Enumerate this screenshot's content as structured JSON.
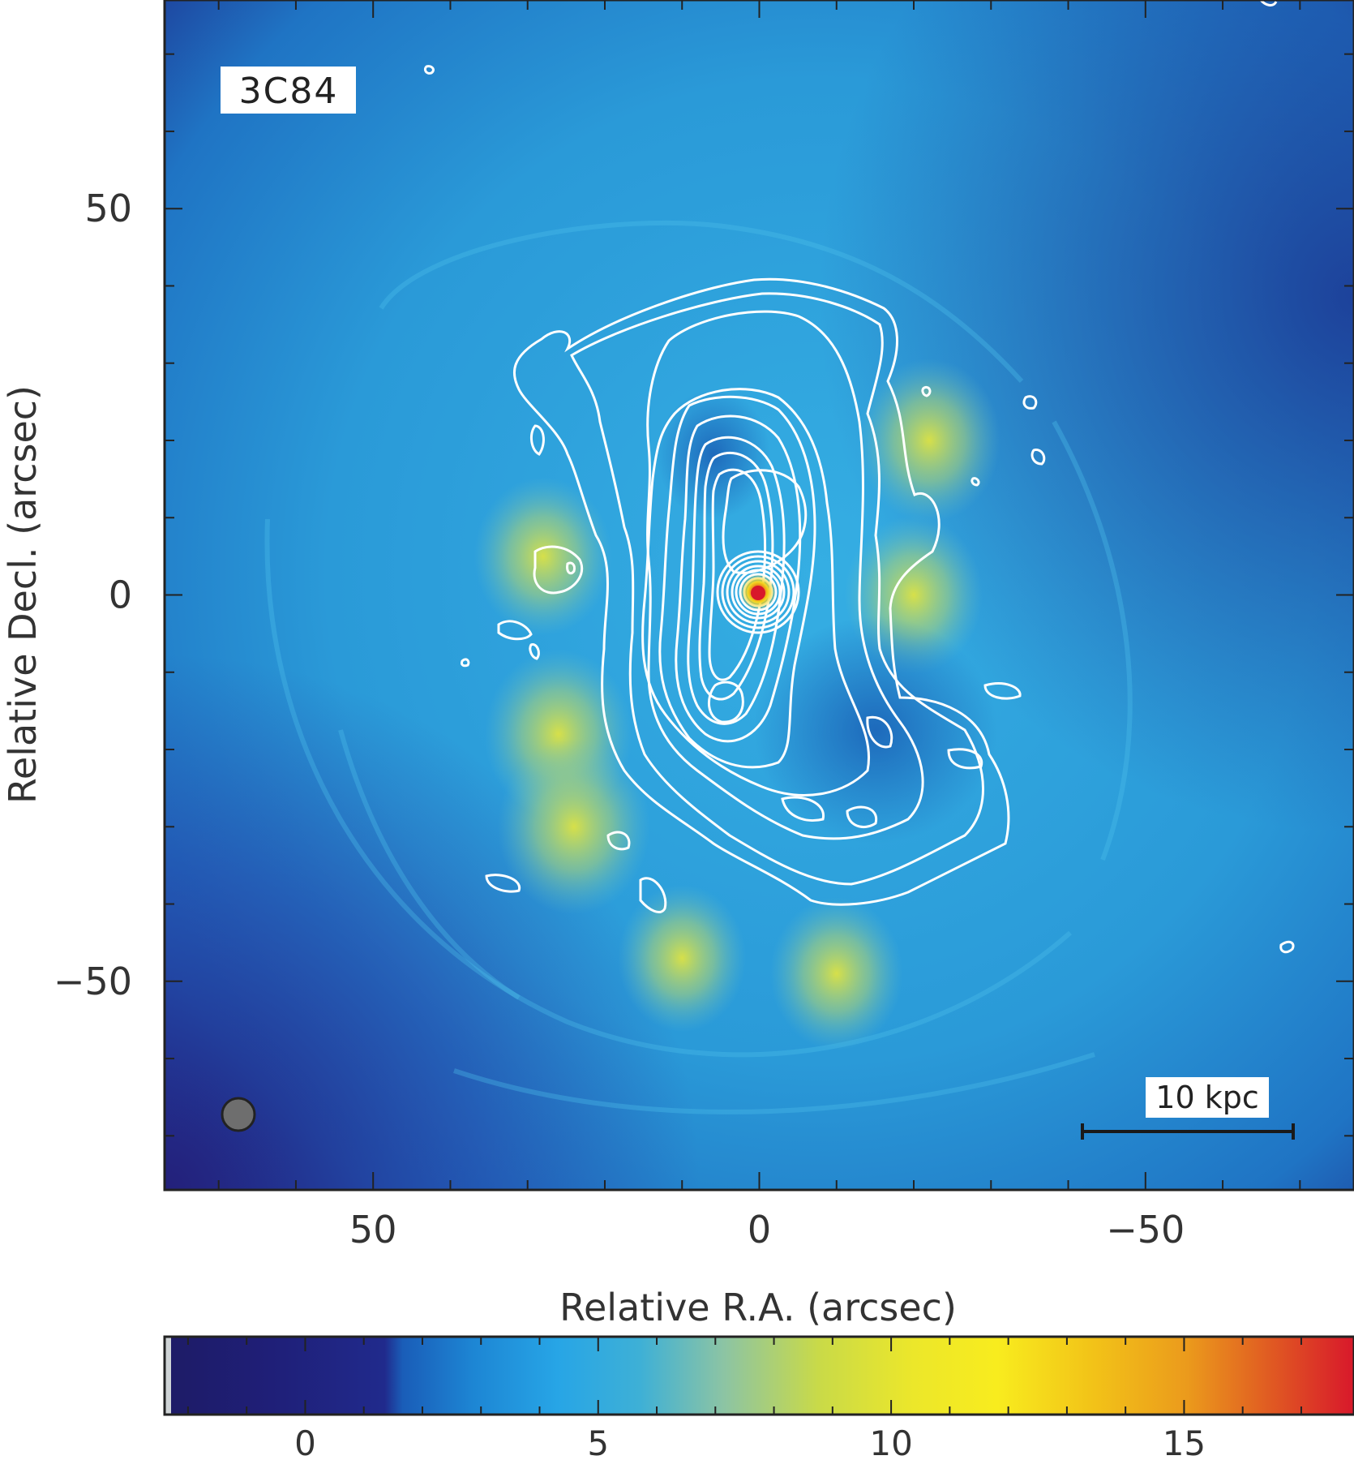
{
  "chart_data": {
    "type": "heatmap",
    "title": "",
    "source_label": "3C84",
    "xlabel": "Relative R.A. (arcsec)",
    "ylabel": "Relative Decl. (arcsec)",
    "xlim": [
      77,
      -77
    ],
    "ylim": [
      -77,
      77
    ],
    "x_reversed": true,
    "x_ticks": [
      50,
      0,
      -50
    ],
    "x_tick_labels": [
      "50",
      "0",
      "−50"
    ],
    "y_ticks": [
      50,
      0,
      -50
    ],
    "y_tick_labels": [
      "50",
      "0",
      "−50"
    ],
    "grid": false,
    "colorbar": {
      "range": [
        -2.4,
        17.9
      ],
      "ticks": [
        0,
        5,
        10,
        15
      ],
      "tick_labels": [
        "0",
        "5",
        "10",
        "15"
      ],
      "colors": [
        "#1e1b66",
        "#1c2f8f",
        "#1a7fd4",
        "#27a3e0",
        "#35aedd",
        "#7fc4b2",
        "#c4d84a",
        "#e9e72a",
        "#f7ec1e",
        "#f0b915",
        "#e98a1e",
        "#dc3b24",
        "#d81b2a"
      ]
    },
    "scale_bar": {
      "label": "10 kpc"
    },
    "core_peak": {
      "x": 0,
      "y": 0
    },
    "contours": "white radio contours tracing a north–south lobed structure around the core",
    "emission_features": [
      {
        "x": 28,
        "y": 5,
        "level": 7.5
      },
      {
        "x": 26,
        "y": -18,
        "level": 8.5
      },
      {
        "x": 24,
        "y": -30,
        "level": 9
      },
      {
        "x": -22,
        "y": 20,
        "level": 8
      },
      {
        "x": -20,
        "y": 0,
        "level": 7.5
      },
      {
        "x": -10,
        "y": -49,
        "level": 7
      },
      {
        "x": 10,
        "y": -47,
        "level": 6.5
      }
    ]
  }
}
